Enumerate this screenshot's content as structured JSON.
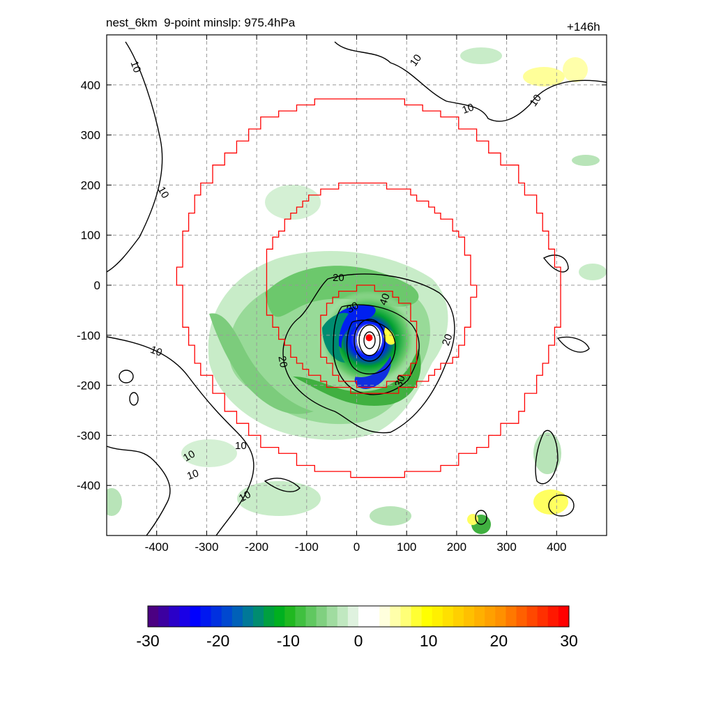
{
  "chart_data": {
    "type": "heatmap",
    "title": "nest_6km  9-point minslp: 975.4hPa",
    "forecast_hour": "+146h",
    "xlim": [
      -500,
      500
    ],
    "ylim": [
      -500,
      500
    ],
    "x_ticks": [
      -400,
      -300,
      -200,
      -100,
      0,
      100,
      200,
      300,
      400
    ],
    "y_ticks": [
      400,
      300,
      200,
      100,
      0,
      -100,
      -200,
      -300,
      -400
    ],
    "grid": "dashed gray",
    "center_marker": {
      "x": 25,
      "y": -105,
      "color": "#ff0000"
    },
    "rings_km": [
      100,
      210,
      380
    ],
    "ring_color": "#ff0000",
    "contour_line_labels": [
      10,
      20,
      30,
      40
    ],
    "colorbar": {
      "ticks": [
        -30,
        -20,
        -10,
        0,
        10,
        20,
        30
      ],
      "range": [
        -30,
        30
      ],
      "colors": [
        "#4b0082",
        "#3c00a0",
        "#2a00c8",
        "#1a00e6",
        "#0000ff",
        "#0018f0",
        "#0030e0",
        "#0048d0",
        "#0060b8",
        "#007898",
        "#008c70",
        "#00a040",
        "#00b020",
        "#20b820",
        "#40c040",
        "#60c860",
        "#80d080",
        "#a0dca0",
        "#c0e8c0",
        "#dff2df",
        "#ffffff",
        "#ffffff",
        "#ffffdd",
        "#ffffaa",
        "#ffff77",
        "#ffff33",
        "#ffff00",
        "#fff000",
        "#ffe000",
        "#ffd000",
        "#ffc000",
        "#ffb000",
        "#ffa000",
        "#ff9000",
        "#ff7800",
        "#ff6000",
        "#ff4800",
        "#ff3000",
        "#ff1800",
        "#ff0000"
      ]
    }
  }
}
